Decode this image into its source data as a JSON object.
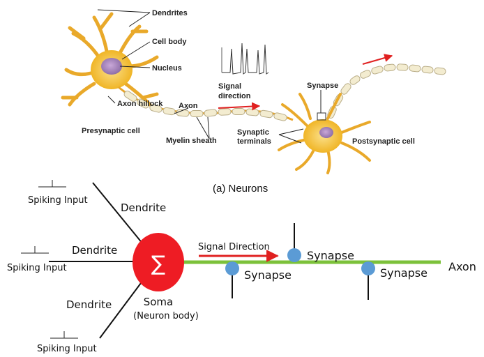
{
  "neuron_illustration": {
    "labels": {
      "dendrites": "Dendrites",
      "cell_body": "Cell body",
      "nucleus": "Nucleus",
      "axon_hillock": "Axon hillock",
      "axon": "Axon",
      "presynaptic_cell": "Presynaptic cell",
      "myelin_sheath": "Myelin sheath",
      "signal_direction_l1": "Signal",
      "signal_direction_l2": "direction",
      "synapse": "Synapse",
      "synaptic_terminals_l1": "Synaptic",
      "synaptic_terminals_l2": "terminals",
      "postsynaptic_cell": "Postsynaptic cell"
    },
    "caption": "(a) Neurons"
  },
  "model_diagram": {
    "spiking_inputs": [
      "Spiking Input",
      "Spiking Input",
      "Spiking Input"
    ],
    "dendrites": [
      "Dendrite",
      "Dendrite",
      "Dendrite"
    ],
    "soma_symbol": "∑",
    "soma_label": "Soma",
    "soma_sublabel": "(Neuron body)",
    "signal_direction": "Signal Direction",
    "synapses": [
      "Synapse",
      "Synapse",
      "Synapse"
    ],
    "axon_label": "Axon"
  },
  "colors": {
    "soma": "#ee1c24",
    "axon_line": "#7cc13a",
    "synapse": "#5b9bd5",
    "arrow": "#e02020",
    "cell": "#f5c23c",
    "myelin": "#f3ecd0"
  }
}
